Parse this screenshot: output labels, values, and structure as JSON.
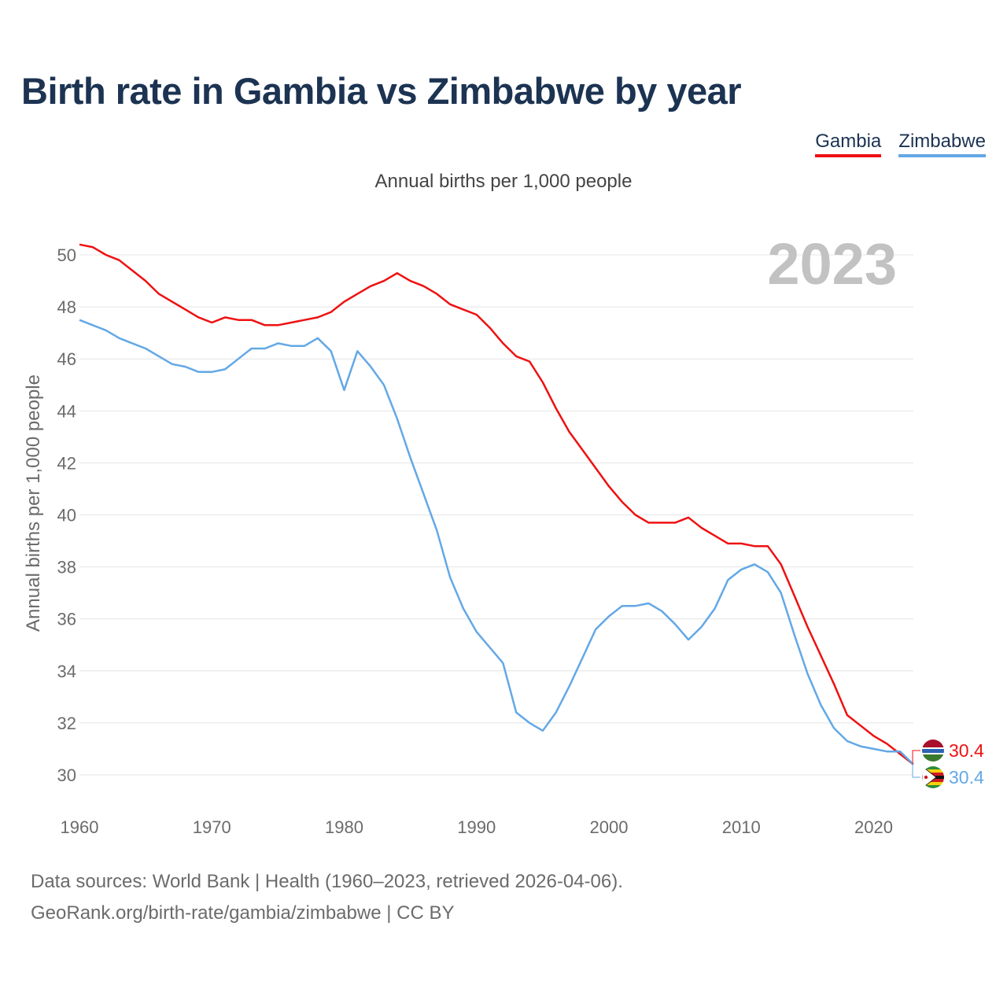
{
  "header": {
    "title": "Birth rate in Gambia vs Zimbabwe by year",
    "subtitle": "Annual births per 1,000 people"
  },
  "legend": [
    {
      "name": "Gambia",
      "color": "#ee1111"
    },
    {
      "name": "Zimbabwe",
      "color": "#63a8e6"
    }
  ],
  "footer": {
    "source_line": "Data sources: World Bank | Health (1960–2023, retrieved 2026-04-06).",
    "url_line": "GeoRank.org/birth-rate/gambia/zimbabwe | CC BY"
  },
  "chart_data": {
    "type": "line",
    "title": "Birth rate in Gambia vs Zimbabwe by year",
    "ylabel": "Annual births per 1,000 people",
    "xlabel": "",
    "year_label": "2023",
    "xlim": [
      1960,
      2023
    ],
    "ylim": [
      29,
      51
    ],
    "x_ticks": [
      1960,
      1970,
      1980,
      1990,
      2000,
      2010,
      2020
    ],
    "y_ticks": [
      30,
      32,
      34,
      36,
      38,
      40,
      42,
      44,
      46,
      48,
      50
    ],
    "x": [
      1960,
      1961,
      1962,
      1963,
      1964,
      1965,
      1966,
      1967,
      1968,
      1969,
      1970,
      1971,
      1972,
      1973,
      1974,
      1975,
      1976,
      1977,
      1978,
      1979,
      1980,
      1981,
      1982,
      1983,
      1984,
      1985,
      1986,
      1987,
      1988,
      1989,
      1990,
      1991,
      1992,
      1993,
      1994,
      1995,
      1996,
      1997,
      1998,
      1999,
      2000,
      2001,
      2002,
      2003,
      2004,
      2005,
      2006,
      2007,
      2008,
      2009,
      2010,
      2011,
      2012,
      2013,
      2014,
      2015,
      2016,
      2017,
      2018,
      2019,
      2020,
      2021,
      2022,
      2023
    ],
    "series": [
      {
        "name": "Gambia",
        "color": "#ee1111",
        "end_label": "30.4",
        "values": [
          50.4,
          50.3,
          50.0,
          49.8,
          49.4,
          49.0,
          48.5,
          48.2,
          47.9,
          47.6,
          47.4,
          47.6,
          47.5,
          47.5,
          47.3,
          47.3,
          47.4,
          47.5,
          47.6,
          47.8,
          48.2,
          48.5,
          48.8,
          49.0,
          49.3,
          49.0,
          48.8,
          48.5,
          48.1,
          47.9,
          47.7,
          47.2,
          46.6,
          46.1,
          45.9,
          45.1,
          44.1,
          43.2,
          42.5,
          41.8,
          41.1,
          40.5,
          40.0,
          39.7,
          39.7,
          39.7,
          39.9,
          39.5,
          39.2,
          38.9,
          38.9,
          38.8,
          38.8,
          38.1,
          36.9,
          35.7,
          34.6,
          33.5,
          32.3,
          31.9,
          31.5,
          31.2,
          30.8,
          30.4
        ]
      },
      {
        "name": "Zimbabwe",
        "color": "#63a8e6",
        "end_label": "30.4",
        "values": [
          47.5,
          47.3,
          47.1,
          46.8,
          46.6,
          46.4,
          46.1,
          45.8,
          45.7,
          45.5,
          45.5,
          45.6,
          46.0,
          46.4,
          46.4,
          46.6,
          46.5,
          46.5,
          46.8,
          46.3,
          44.8,
          46.3,
          45.7,
          45.0,
          43.7,
          42.2,
          40.8,
          39.4,
          37.6,
          36.4,
          35.5,
          34.9,
          34.3,
          32.4,
          32.0,
          31.7,
          32.4,
          33.4,
          34.5,
          35.6,
          36.1,
          36.5,
          36.5,
          36.6,
          36.3,
          35.8,
          35.2,
          35.7,
          36.4,
          37.5,
          37.9,
          38.1,
          37.8,
          37.0,
          35.4,
          33.9,
          32.7,
          31.8,
          31.3,
          31.1,
          31.0,
          30.9,
          30.9,
          30.4
        ]
      }
    ]
  }
}
